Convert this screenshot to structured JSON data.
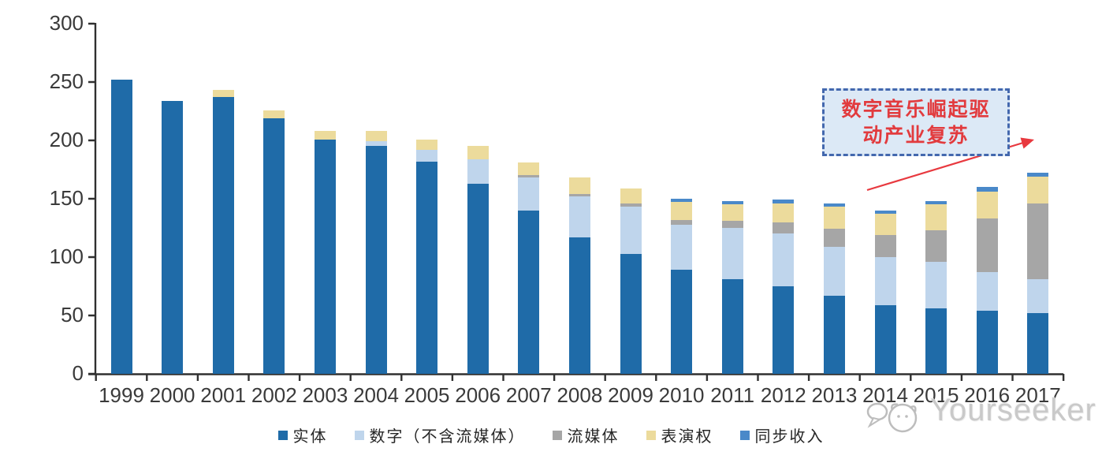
{
  "chart_data": {
    "type": "bar",
    "stacked": true,
    "title": "",
    "categories": [
      "1999",
      "2000",
      "2001",
      "2002",
      "2003",
      "2004",
      "2005",
      "2006",
      "2007",
      "2008",
      "2009",
      "2010",
      "2011",
      "2012",
      "2013",
      "2014",
      "2015",
      "2016",
      "2017"
    ],
    "series": [
      {
        "name": "实体",
        "color": "#1F6BA8",
        "values": [
          252,
          234,
          237,
          219,
          201,
          195,
          182,
          163,
          140,
          117,
          103,
          89,
          81,
          75,
          67,
          59,
          56,
          54,
          52
        ]
      },
      {
        "name": "数字（不含流媒体）",
        "color": "#BFD5EC",
        "values": [
          0,
          0,
          0,
          0,
          0,
          4,
          10,
          21,
          28,
          35,
          40,
          39,
          44,
          45,
          42,
          41,
          40,
          33,
          29
        ]
      },
      {
        "name": "流媒体",
        "color": "#A6A6A6",
        "values": [
          0,
          0,
          0,
          0,
          0,
          0,
          0,
          0,
          2,
          2,
          3,
          4,
          6,
          10,
          15,
          19,
          27,
          46,
          65
        ]
      },
      {
        "name": "表演权",
        "color": "#ECDB9C",
        "values": [
          0,
          0,
          6,
          7,
          7,
          9,
          9,
          11,
          11,
          14,
          13,
          15,
          14,
          16,
          19,
          18,
          22,
          23,
          23
        ]
      },
      {
        "name": "同步收入",
        "color": "#4A89C9",
        "values": [
          0,
          0,
          0,
          0,
          0,
          0,
          0,
          0,
          0,
          0,
          0,
          3,
          3,
          3,
          3,
          3,
          3,
          4,
          3
        ]
      }
    ],
    "xlabel": "",
    "ylabel": "",
    "ylim": [
      0,
      300
    ],
    "yticks": [
      0,
      50,
      100,
      150,
      200,
      250,
      300
    ],
    "grid": false,
    "legend_position": "bottom"
  },
  "annotation": {
    "text": "数字音乐崛起驱动产业复苏",
    "lines": [
      "数字音乐崛起驱",
      "动产业复苏"
    ],
    "box_fill": "#DCE9F6",
    "box_border": "#4368AE",
    "text_color": "#E23B3E",
    "arrow_color": "#E8393F"
  },
  "watermark": {
    "text": "Yourseeker",
    "logo": "yourseeker-logo-icon",
    "color": "#C9C9C9"
  }
}
